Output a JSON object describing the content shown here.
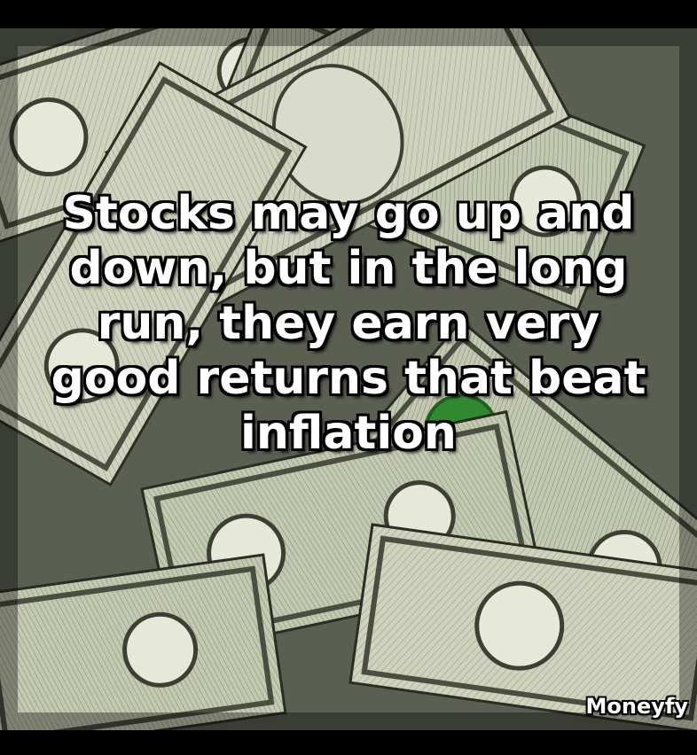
{
  "caption": {
    "lines": [
      "Stocks may go up and",
      "down, but in the long",
      "run, they earn very",
      "good returns that beat",
      "inflation"
    ]
  },
  "watermark": "Moneyfy",
  "background": {
    "subject": "pile of one dollar bills",
    "colors": {
      "paper": "#cfd3bd",
      "ink": "#3c4034",
      "seal": "#2f8a2f",
      "shadow": "#1b1d17"
    }
  }
}
